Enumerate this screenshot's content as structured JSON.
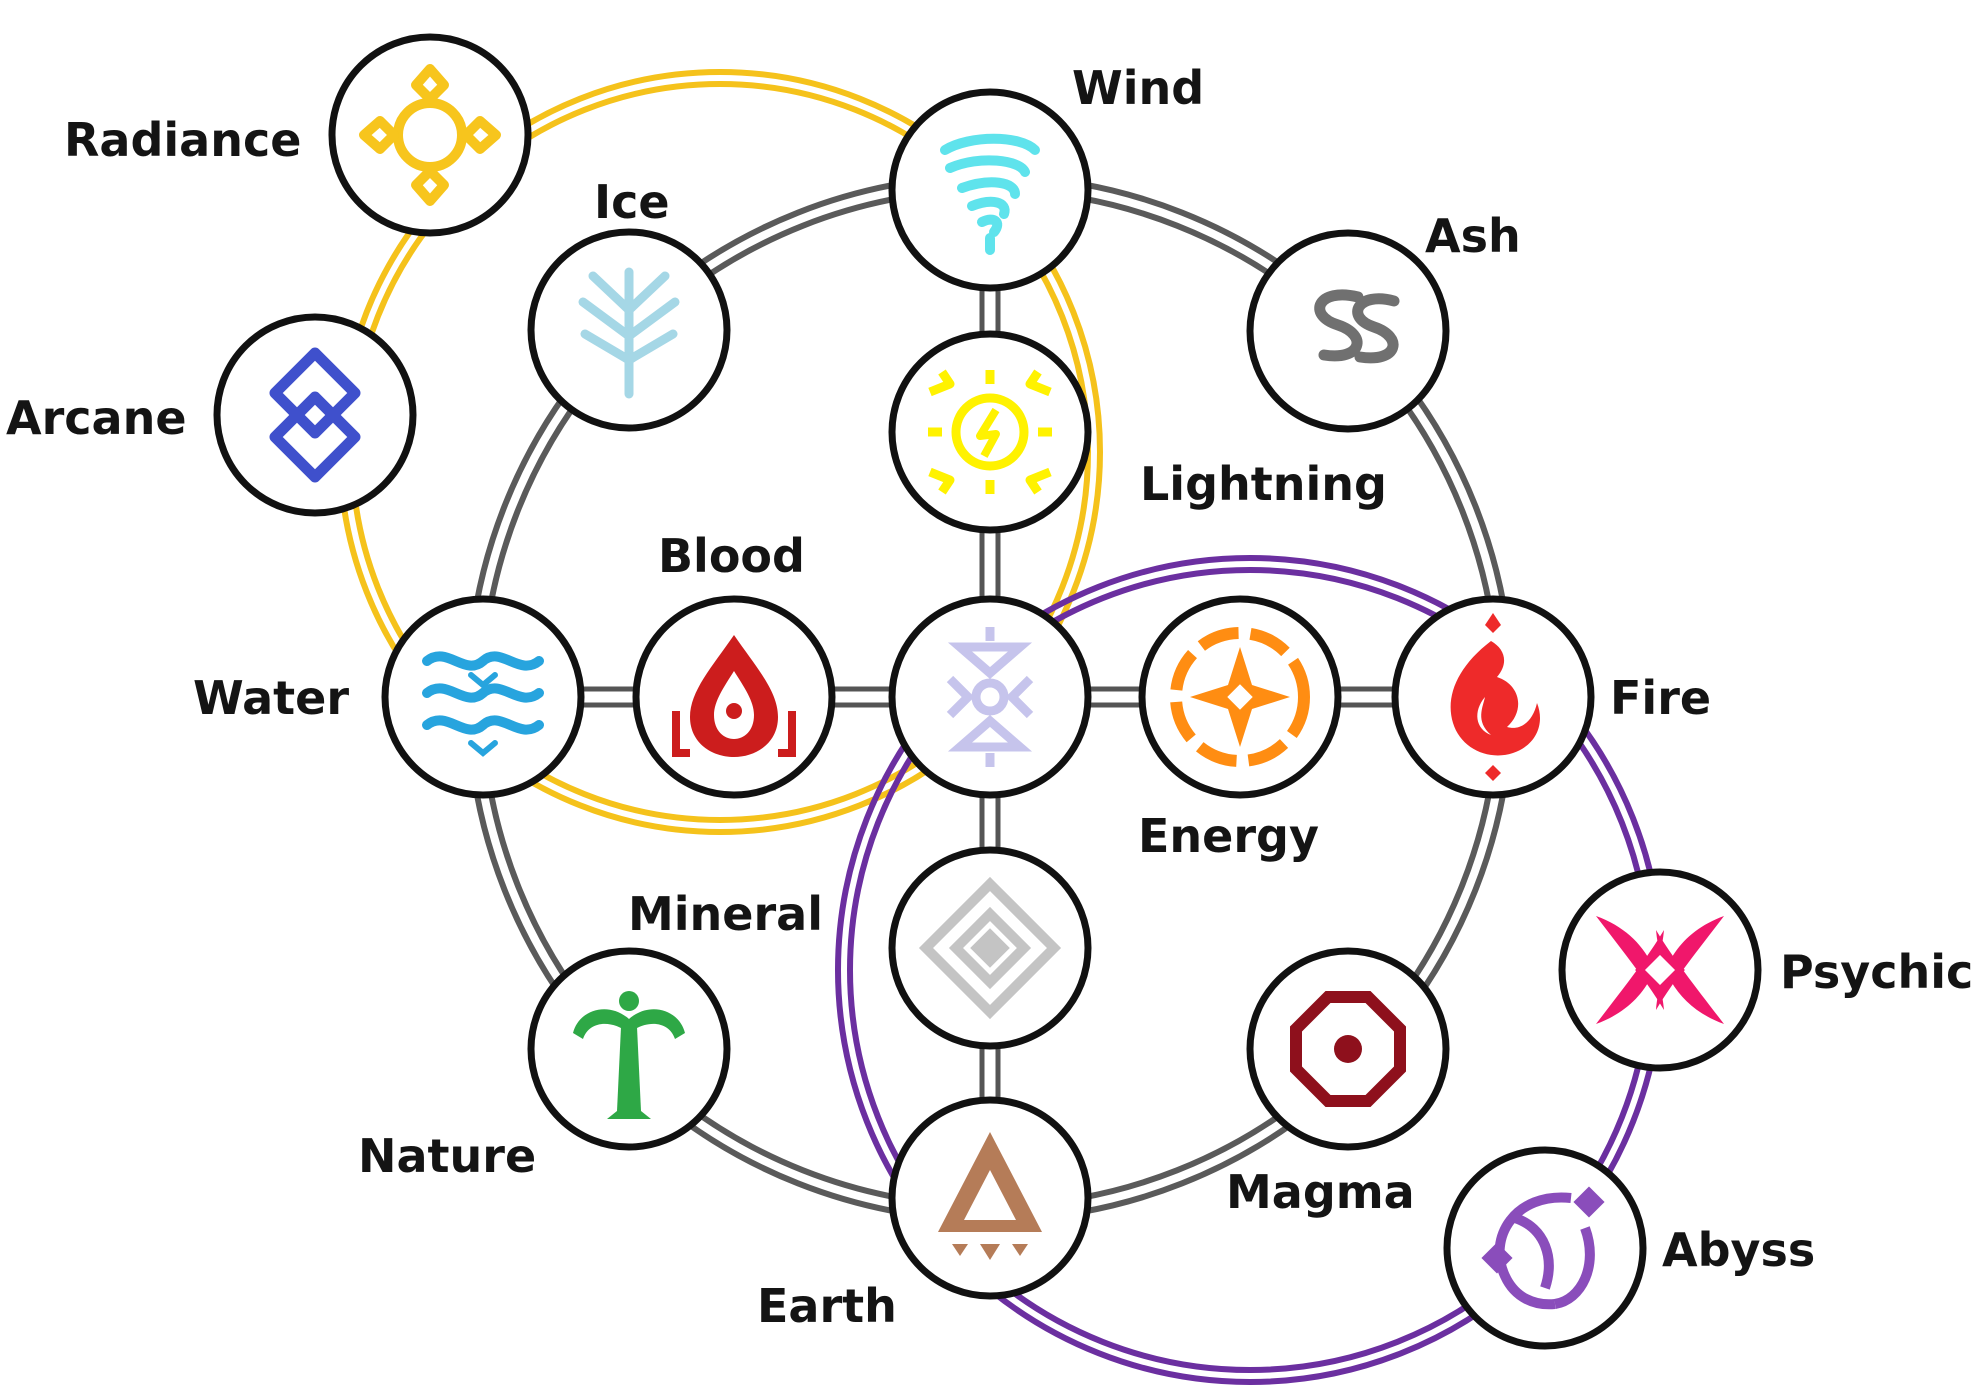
{
  "colors": {
    "ring_main": "#5a5a5a",
    "ring_radiance": "#f5c21b",
    "ring_abyss": "#6b2fa0",
    "node_border": "#111111"
  },
  "nodes": [
    {
      "id": "wind",
      "label": "Wind",
      "icon": "tornado-icon",
      "color": "#5fe3ec"
    },
    {
      "id": "lightning",
      "label": "Lightning",
      "icon": "lightning-sun-icon",
      "color": "#fff200"
    },
    {
      "id": "center",
      "label": "",
      "icon": "aether-rune-icon",
      "color": "#c6c4ec"
    },
    {
      "id": "mineral",
      "label": "Mineral",
      "icon": "diamond-rune-icon",
      "color": "#c4c4c4"
    },
    {
      "id": "earth",
      "label": "Earth",
      "icon": "triangle-rune-icon",
      "color": "#b57c58"
    },
    {
      "id": "ice",
      "label": "Ice",
      "icon": "frost-branch-icon",
      "color": "#a5d7e6"
    },
    {
      "id": "ash",
      "label": "Ash",
      "icon": "ash-swirl-icon",
      "color": "#707070"
    },
    {
      "id": "water",
      "label": "Water",
      "icon": "waves-icon",
      "color": "#27a4de"
    },
    {
      "id": "blood",
      "label": "Blood",
      "icon": "blood-drop-icon",
      "color": "#cc1d1d"
    },
    {
      "id": "energy",
      "label": "Energy",
      "icon": "compass-star-icon",
      "color": "#ff8d12"
    },
    {
      "id": "fire",
      "label": "Fire",
      "icon": "flame-icon",
      "color": "#ee2a2a"
    },
    {
      "id": "nature",
      "label": "Nature",
      "icon": "sprout-icon",
      "color": "#2ea846"
    },
    {
      "id": "magma",
      "label": "Magma",
      "icon": "target-ring-icon",
      "color": "#8e101c"
    },
    {
      "id": "radiance",
      "label": "Radiance",
      "icon": "radiance-sigil-icon",
      "color": "#f7c51d"
    },
    {
      "id": "arcane",
      "label": "Arcane",
      "icon": "linked-diamonds-icon",
      "color": "#3f50cc"
    },
    {
      "id": "psychic",
      "label": "Psychic",
      "icon": "crossed-crescents-icon",
      "color": "#f0176b"
    },
    {
      "id": "abyss",
      "label": "Abyss",
      "icon": "abyss-crescent-icon",
      "color": "#8a4dbb"
    }
  ]
}
